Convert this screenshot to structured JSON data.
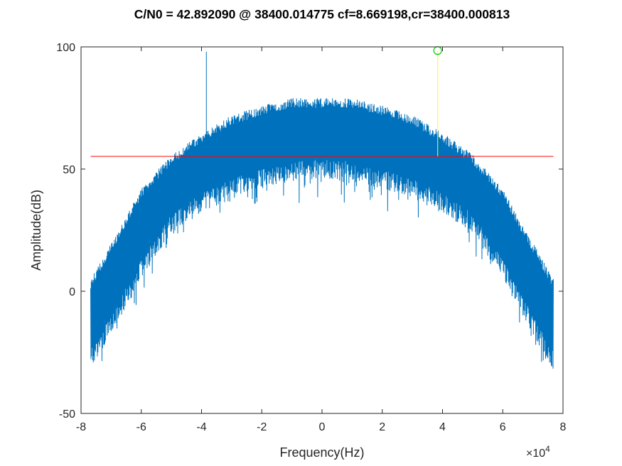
{
  "chart_data": {
    "type": "line",
    "title": "C/N0 = 42.892090 @ 38400.014775 cf=8.669198,cr=38400.000813",
    "xlabel": "Frequency(Hz)",
    "ylabel": "Amplitude(dB)",
    "x_exponent": {
      "base": "×10",
      "power": "4"
    },
    "xlim": [
      -80000,
      80000
    ],
    "ylim": [
      -50,
      100
    ],
    "x_ticks": [
      -80000,
      -60000,
      -40000,
      -20000,
      0,
      20000,
      40000,
      60000,
      80000
    ],
    "x_tick_labels": [
      "-8",
      "-6",
      "-4",
      "-2",
      "0",
      "2",
      "4",
      "6",
      "8"
    ],
    "y_ticks": [
      -50,
      0,
      50,
      100
    ],
    "y_tick_labels": [
      "-50",
      "0",
      "50",
      "100"
    ],
    "grid": false,
    "series": [
      {
        "kind": "spectrum",
        "color": "#0072BD",
        "x_range": [
          -76800,
          76800
        ],
        "envelope": {
          "x": [
            -76800,
            -70000,
            -60000,
            -50000,
            -40000,
            -30000,
            -20000,
            -10000,
            0,
            10000,
            20000,
            30000,
            40000,
            50000,
            60000,
            70000,
            76800
          ],
          "upper": [
            5,
            20,
            42,
            56,
            65,
            72,
            76,
            79,
            79,
            79,
            76,
            72,
            65,
            56,
            42,
            20,
            5
          ],
          "lower": [
            -32,
            -18,
            5,
            24,
            32,
            38,
            42,
            45,
            46,
            45,
            42,
            38,
            32,
            24,
            5,
            -18,
            -32
          ]
        },
        "spikes": [
          {
            "x": -38400,
            "y": 98
          },
          {
            "x": 0,
            "y": 57
          }
        ]
      },
      {
        "kind": "threshold",
        "color": "#FF0000",
        "x": [
          -76800,
          76800
        ],
        "y": [
          55.2,
          55.2
        ]
      },
      {
        "kind": "marker-line",
        "color": "#FFFF00",
        "x": [
          38400,
          38400
        ],
        "y": [
          55.2,
          98.5
        ]
      },
      {
        "kind": "peak-marker",
        "color": "#00CC00",
        "x": 38400,
        "y": 98.5
      }
    ]
  }
}
